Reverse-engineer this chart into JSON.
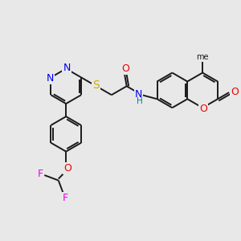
{
  "background_color": "#e8e8e8",
  "bond_color": "#1a1a1a",
  "atom_colors": {
    "N": "#0000ee",
    "O": "#ee0000",
    "S": "#ccaa00",
    "F": "#ee00ee",
    "H": "#008080",
    "C": "#1a1a1a"
  },
  "figsize": [
    3.0,
    3.0
  ],
  "dpi": 100,
  "lw": 1.4
}
